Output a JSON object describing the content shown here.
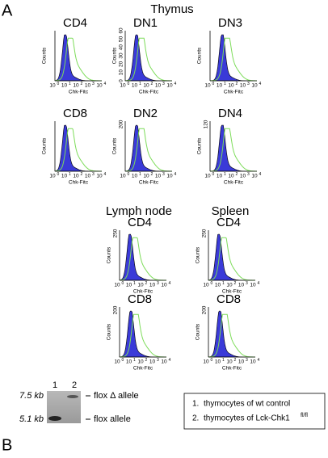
{
  "figure": {
    "panel_a": {
      "label": "A",
      "thymus": {
        "title": "Thymus",
        "plots": [
          {
            "title": "CD4",
            "yticks": []
          },
          {
            "title": "DN1",
            "yticks": [
              "0",
              "10",
              "20",
              "30",
              "40",
              "50",
              "60"
            ]
          },
          {
            "title": "DN3",
            "yticks": []
          },
          {
            "title": "CD8",
            "yticks": []
          },
          {
            "title": "DN2",
            "yticks": [
              "200"
            ]
          },
          {
            "title": "DN4",
            "yticks": [
              "120"
            ]
          }
        ]
      },
      "lymph_node": {
        "title": "Lymph node",
        "plots": [
          {
            "title": "CD4",
            "yticks": [
              "250"
            ]
          },
          {
            "title": "CD8",
            "yticks": [
              "200"
            ]
          }
        ]
      },
      "spleen": {
        "title": "Spleen",
        "plots": [
          {
            "title": "CD4",
            "yticks": [
              "250"
            ]
          },
          {
            "title": "CD8",
            "yticks": [
              "200"
            ]
          }
        ]
      }
    },
    "axis": {
      "y_label": "Counts",
      "x_label": "Chk-Fitc",
      "x_tick_base": "10",
      "x_tick_exps": [
        "0",
        "1",
        "2",
        "3",
        "4"
      ]
    },
    "panel_b": {
      "label": "B",
      "lanes": [
        "1",
        "2"
      ],
      "markers": [
        "7.5 kb",
        "5.1 kb"
      ],
      "bands": [
        "flox Δ allele",
        "flox allele"
      ],
      "legend": [
        {
          "num": "1.",
          "text": "thymocytes of wt control"
        },
        {
          "num": "2.",
          "text": "thymocytes of Lck-Chk1",
          "sup": "fl/fl"
        }
      ]
    }
  }
}
